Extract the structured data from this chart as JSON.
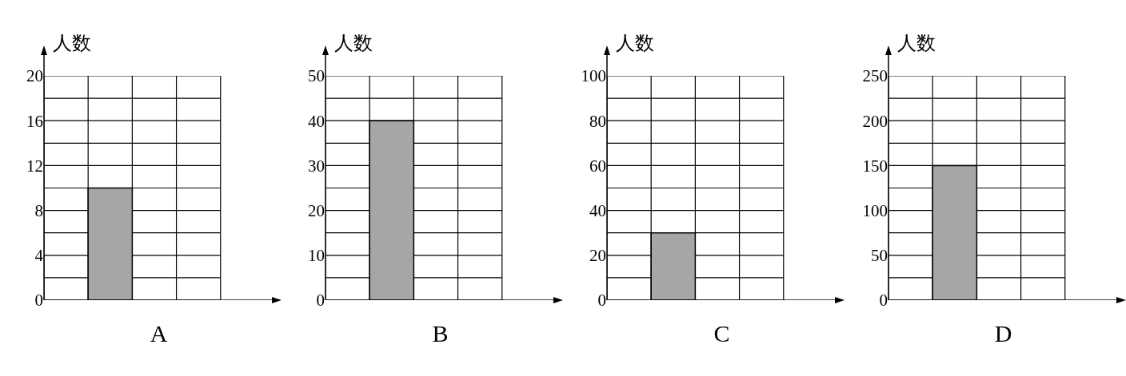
{
  "chart_data": [
    {
      "type": "bar",
      "xlabel": "A",
      "ylabel": "人数",
      "categories": [
        null,
        null,
        null,
        null
      ],
      "values": [
        null,
        10,
        null,
        null
      ],
      "color": "#a6a6a6",
      "ylim": [
        0,
        20
      ],
      "yticks": [
        0,
        {
          "value": 2,
          "label": null
        },
        4,
        {
          "value": 6,
          "label": null
        },
        8,
        {
          "value": 10,
          "label": null
        },
        12,
        {
          "value": 14,
          "label": null
        },
        16,
        {
          "value": 18,
          "label": null
        },
        20
      ],
      "grid": true,
      "tick_labels": "y"
    },
    {
      "type": "bar",
      "xlabel": "B",
      "ylabel": "人数",
      "categories": [
        null,
        null,
        null,
        null
      ],
      "values": [
        null,
        40,
        null,
        null
      ],
      "color": "#a6a6a6",
      "ylim": [
        0,
        50
      ],
      "yticks": [
        0,
        {
          "value": 5,
          "label": null
        },
        10,
        {
          "value": 15,
          "label": null
        },
        20,
        {
          "value": 25,
          "label": null
        },
        30,
        {
          "value": 35,
          "label": null
        },
        40,
        {
          "value": 45,
          "label": null
        },
        50
      ],
      "grid": true,
      "tick_labels": "y"
    },
    {
      "type": "bar",
      "xlabel": "C",
      "ylabel": "人数",
      "categories": [
        null,
        null,
        null,
        null
      ],
      "values": [
        null,
        30,
        null,
        null
      ],
      "color": "#a6a6a6",
      "ylim": [
        0,
        100
      ],
      "yticks": [
        0,
        {
          "value": 10,
          "label": null
        },
        20,
        {
          "value": 30,
          "label": null
        },
        40,
        {
          "value": 50,
          "label": null
        },
        60,
        {
          "value": 70,
          "label": null
        },
        80,
        {
          "value": 90,
          "label": null
        },
        100
      ],
      "grid": true,
      "tick_labels": "y"
    },
    {
      "type": "bar",
      "xlabel": "D",
      "ylabel": "人数",
      "categories": [
        null,
        null,
        null,
        null
      ],
      "values": [
        null,
        150,
        null,
        null
      ],
      "color": "#a6a6a6",
      "ylim": [
        0,
        250
      ],
      "yticks": [
        0,
        {
          "value": 25,
          "label": null
        },
        50,
        {
          "value": 75,
          "label": null
        },
        100,
        {
          "value": 125,
          "label": null
        },
        150,
        {
          "value": 175,
          "label": null
        },
        200,
        {
          "value": 225,
          "label": null
        },
        250
      ],
      "grid": true,
      "tick_labels": "y"
    }
  ]
}
